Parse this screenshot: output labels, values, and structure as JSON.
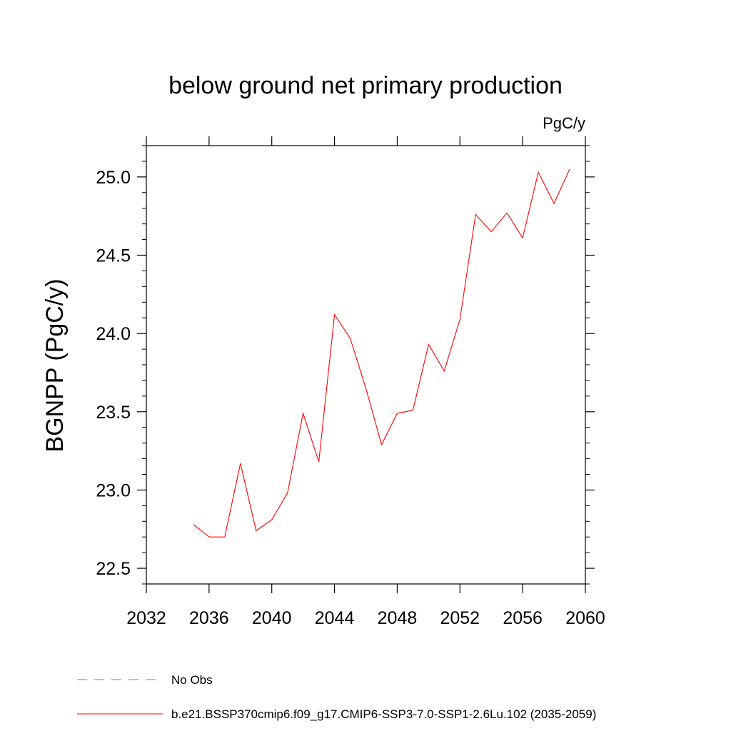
{
  "chart_data": {
    "type": "line",
    "title": "below ground net primary production",
    "units": "PgC/y",
    "ylabel": "BGNPP  (PgC/y)",
    "xlabel": "",
    "xlim": [
      2032,
      2060
    ],
    "ylim": [
      22.4,
      25.2
    ],
    "x_ticks": [
      2032,
      2036,
      2040,
      2044,
      2048,
      2052,
      2056,
      2060
    ],
    "x_tick_labels": [
      "2032",
      "2036",
      "2040",
      "2044",
      "2048",
      "2052",
      "2056",
      "2060"
    ],
    "y_ticks": [
      22.5,
      23.0,
      23.5,
      24.0,
      24.5,
      25.0
    ],
    "y_tick_labels": [
      "22.5",
      "23.0",
      "23.5",
      "24.0",
      "24.5",
      "25.0"
    ],
    "grid": false,
    "series": [
      {
        "name": "b.e21.BSSP370cmip6.f09_g17.CMIP6-SSP3-7.0-SSP1-2.6Lu.102 (2035-2059)",
        "color": "#ff0000",
        "x": [
          2035,
          2036,
          2037,
          2038,
          2039,
          2040,
          2041,
          2042,
          2043,
          2044,
          2045,
          2046,
          2047,
          2048,
          2049,
          2050,
          2051,
          2052,
          2053,
          2054,
          2055,
          2056,
          2057,
          2058,
          2059
        ],
        "y": [
          22.78,
          22.7,
          22.7,
          23.17,
          22.74,
          22.81,
          22.98,
          23.49,
          23.18,
          24.12,
          23.97,
          23.65,
          23.29,
          23.49,
          23.51,
          23.93,
          23.76,
          24.09,
          24.76,
          24.65,
          24.77,
          24.61,
          25.03,
          24.83,
          25.05
        ]
      }
    ],
    "legend": [
      {
        "label": "No Obs",
        "color": "#7777cc",
        "style": "dashed"
      },
      {
        "label": "b.e21.BSSP370cmip6.f09_g17.CMIP6-SSP3-7.0-SSP1-2.6Lu.102 (2035-2059)",
        "color": "#ff0000",
        "style": "solid"
      }
    ]
  }
}
